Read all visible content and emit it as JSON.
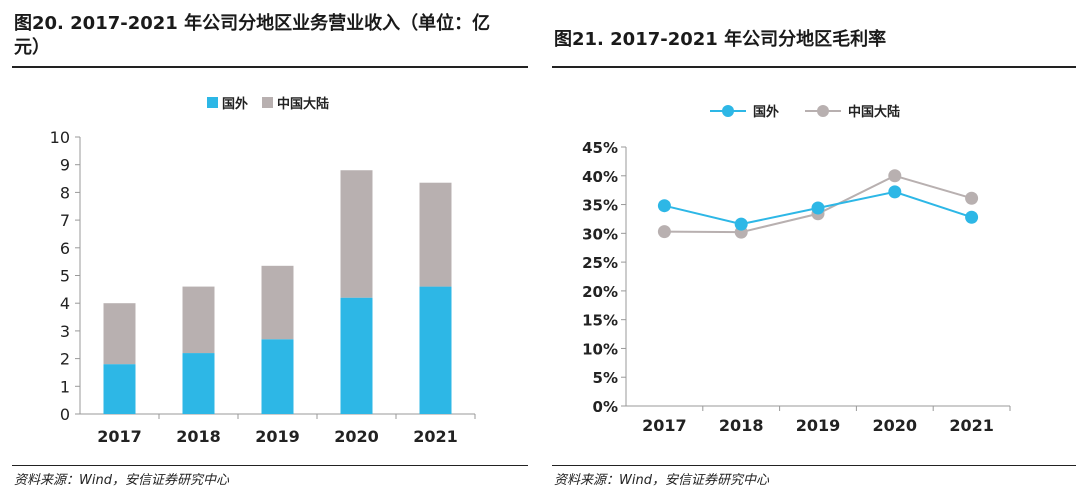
{
  "colors": {
    "overseas": "#2DB7E6",
    "mainland": "#B8B0B0",
    "axis": "#999999",
    "text": "#222222"
  },
  "chart_data": [
    {
      "type": "bar",
      "stacked": true,
      "title": "图20. 2017-2021 年公司分地区业务营业收入（单位：亿元）",
      "categories": [
        "2017",
        "2018",
        "2019",
        "2020",
        "2021"
      ],
      "series": [
        {
          "name": "国外",
          "values": [
            1.8,
            2.2,
            2.7,
            4.2,
            4.6
          ]
        },
        {
          "name": "中国大陆",
          "values": [
            2.2,
            2.4,
            2.65,
            4.6,
            3.75
          ]
        }
      ],
      "ylim": [
        0,
        10
      ],
      "yticks": [
        "0",
        "1",
        "2",
        "3",
        "4",
        "5",
        "6",
        "7",
        "8",
        "9",
        "10"
      ],
      "legend": "top",
      "source": "资料来源：Wind，安信证券研究中心"
    },
    {
      "type": "line",
      "title": "图21. 2017-2021 年公司分地区毛利率",
      "categories": [
        "2017",
        "2018",
        "2019",
        "2020",
        "2021"
      ],
      "series": [
        {
          "name": "国外",
          "values": [
            34.8,
            31.6,
            34.4,
            37.2,
            32.8
          ]
        },
        {
          "name": "中国大陆",
          "values": [
            30.3,
            30.2,
            33.4,
            40.0,
            36.1
          ]
        }
      ],
      "ylim": [
        0,
        45
      ],
      "yticks": [
        "0%",
        "5%",
        "10%",
        "15%",
        "20%",
        "25%",
        "30%",
        "35%",
        "40%",
        "45%"
      ],
      "legend": "top",
      "source": "资料来源：Wind，安信证券研究中心"
    }
  ]
}
